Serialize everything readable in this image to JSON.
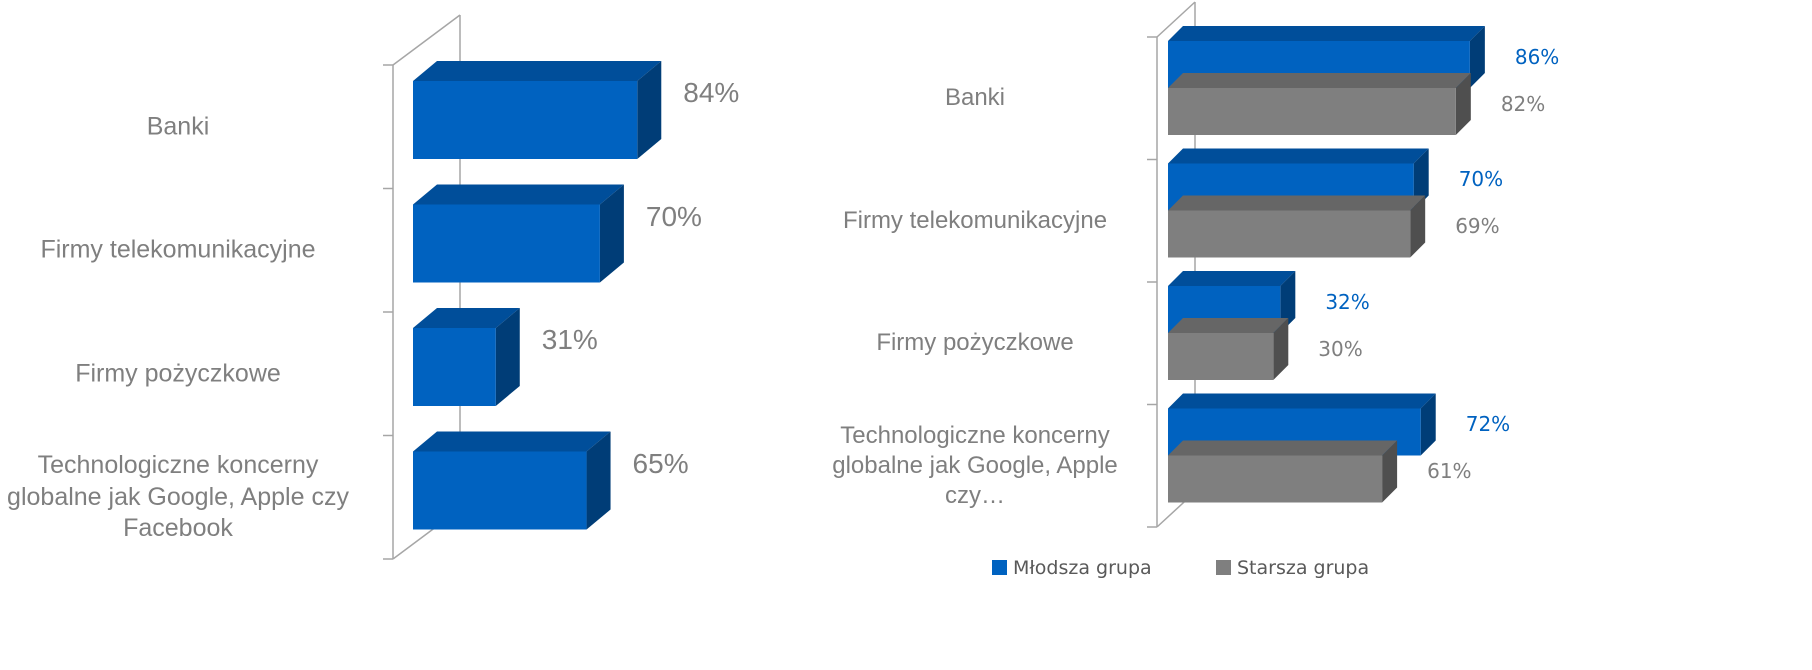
{
  "chart_data": [
    {
      "type": "bar",
      "categories": [
        "Banki",
        "Firmy telekomunikacyjne",
        "Firmy pożyczkowe",
        "Technologiczne koncerny globalne jak Google, Apple czy Facebook"
      ],
      "values": [
        84,
        70,
        31,
        65
      ],
      "value_labels": [
        "84%",
        "70%",
        "31%",
        "65%"
      ],
      "color": "#0062c0"
    },
    {
      "type": "bar",
      "categories": [
        "Banki",
        "Firmy telekomunikacyjne",
        "Firmy pożyczkowe",
        "Technologiczne koncerny globalne jak Google, Apple czy…"
      ],
      "series": [
        {
          "name": "Młodsza grupa",
          "color": "#0062c0",
          "values": [
            86,
            70,
            32,
            72
          ],
          "value_labels": [
            "86%",
            "70%",
            "32%",
            "72%"
          ]
        },
        {
          "name": "Starsza grupa",
          "color": "#7f7f7f",
          "values": [
            82,
            69,
            30,
            61
          ],
          "value_labels": [
            "82%",
            "69%",
            "30%",
            "61%"
          ]
        }
      ],
      "legend": "bottom"
    }
  ]
}
